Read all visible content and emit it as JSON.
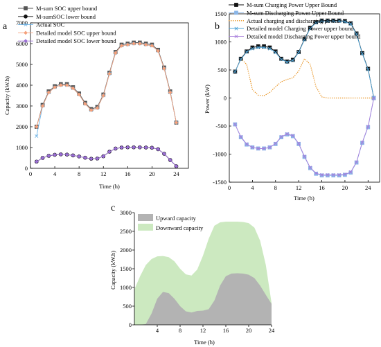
{
  "chart_data": [
    {
      "panel_label": "a",
      "type": "line",
      "xlabel": "Time (h)",
      "ylabel": "Capacity (kW.h)",
      "xlim": [
        0,
        26
      ],
      "ylim": [
        0,
        7000
      ],
      "xticks": [
        0,
        4,
        8,
        12,
        16,
        20,
        24
      ],
      "yticks": [
        0,
        1000,
        2000,
        3000,
        4000,
        5000,
        6000,
        7000
      ],
      "legend_position": "top-left",
      "x": [
        1,
        2,
        3,
        4,
        5,
        6,
        7,
        8,
        9,
        10,
        11,
        12,
        13,
        14,
        15,
        16,
        17,
        18,
        19,
        20,
        21,
        22,
        23,
        24
      ],
      "series": [
        {
          "name": "M-sum SOC upper bound",
          "color": "#555555",
          "marker": "square",
          "values": [
            2000,
            3050,
            3700,
            3950,
            4050,
            4050,
            3900,
            3600,
            3150,
            2850,
            2950,
            3550,
            4600,
            5600,
            5950,
            6000,
            6050,
            6050,
            6000,
            5950,
            5700,
            4850,
            3700,
            2200
          ]
        },
        {
          "name": "M-sumSOC lower bound",
          "color": "#111111",
          "marker": "circle",
          "values": [
            320,
            500,
            600,
            650,
            670,
            660,
            620,
            570,
            510,
            460,
            470,
            580,
            800,
            950,
            1000,
            1010,
            1010,
            1010,
            1000,
            990,
            920,
            700,
            400,
            100
          ]
        },
        {
          "name": "Actual SOC",
          "color": "#6fb4e6",
          "marker": "x",
          "values": [
            1550,
            3000,
            3650,
            3900,
            4000,
            4000,
            3850,
            3550,
            3100,
            2800,
            2900,
            3500,
            4550,
            5550,
            5900,
            5950,
            6000,
            6000,
            5950,
            5900,
            5650,
            4800,
            3650,
            2200
          ]
        },
        {
          "name": "Detailed model SOC upper bound",
          "color": "#f4a17c",
          "marker": "diamond",
          "values": [
            2000,
            3000,
            3650,
            3900,
            4000,
            4000,
            3850,
            3550,
            3100,
            2800,
            2900,
            3500,
            4550,
            5550,
            5900,
            5950,
            6000,
            6000,
            5950,
            5900,
            5650,
            4800,
            3650,
            2200
          ]
        },
        {
          "name": "Detailed model SOC lower bound",
          "color": "#9b6fd6",
          "marker": "diamond",
          "values": [
            320,
            500,
            600,
            650,
            670,
            660,
            620,
            570,
            510,
            460,
            470,
            580,
            800,
            950,
            1000,
            1010,
            1010,
            1010,
            1000,
            990,
            920,
            700,
            400,
            100
          ]
        }
      ]
    },
    {
      "panel_label": "b",
      "type": "line",
      "xlabel": "Time (h)",
      "ylabel": "Power (kW)",
      "xlim": [
        0,
        26
      ],
      "ylim": [
        -1500,
        1500
      ],
      "xticks": [
        0,
        4,
        8,
        12,
        16,
        20,
        24
      ],
      "yticks": [
        -1500,
        -1000,
        -500,
        0,
        500,
        1000,
        1500
      ],
      "legend_position": "top",
      "x": [
        1,
        2,
        3,
        4,
        5,
        6,
        7,
        8,
        9,
        10,
        11,
        12,
        13,
        14,
        15,
        16,
        17,
        18,
        19,
        20,
        21,
        22,
        23,
        24,
        25
      ],
      "series": [
        {
          "name": "M-sum Charging Power Upper Bound",
          "color": "#111111",
          "marker": "square",
          "values": [
            470,
            700,
            830,
            900,
            920,
            920,
            900,
            830,
            700,
            650,
            680,
            820,
            1050,
            1250,
            1350,
            1380,
            1380,
            1380,
            1380,
            1370,
            1330,
            1150,
            800,
            520,
            0
          ]
        },
        {
          "name": "M-sum Discharging Power Upper Bound",
          "color": "#8ab6e8",
          "marker": "square",
          "values": [
            -470,
            -700,
            -830,
            -880,
            -900,
            -900,
            -880,
            -820,
            -700,
            -650,
            -680,
            -820,
            -1050,
            -1250,
            -1350,
            -1380,
            -1380,
            -1380,
            -1380,
            -1370,
            -1330,
            -1150,
            -800,
            -520,
            0
          ]
        },
        {
          "name": "Actual charging and discharging power",
          "color": "#e8901a",
          "dash": true,
          "x": [
            2,
            3,
            4,
            5,
            6,
            7,
            8,
            9,
            10,
            11,
            12,
            13,
            14,
            15,
            16,
            17,
            18,
            19,
            20,
            21,
            22,
            23,
            24,
            25
          ],
          "values": [
            700,
            600,
            150,
            50,
            40,
            100,
            200,
            290,
            330,
            360,
            480,
            700,
            600,
            200,
            20,
            0,
            0,
            0,
            0,
            0,
            0,
            0,
            0,
            0
          ]
        },
        {
          "name": "Detailed model Charging Power upper bound",
          "color": "#4ea3d6",
          "marker": "x",
          "values": [
            470,
            690,
            820,
            880,
            900,
            900,
            880,
            810,
            690,
            640,
            670,
            810,
            1040,
            1240,
            1340,
            1370,
            1370,
            1370,
            1370,
            1360,
            1320,
            1140,
            790,
            510,
            0
          ]
        },
        {
          "name": "Detailed model Discharging Power upper bound",
          "color": "#a77ddb",
          "marker": "x",
          "values": [
            -470,
            -690,
            -820,
            -880,
            -900,
            -900,
            -880,
            -810,
            -690,
            -640,
            -670,
            -810,
            -1040,
            -1240,
            -1340,
            -1370,
            -1370,
            -1370,
            -1370,
            -1360,
            -1320,
            -1140,
            -790,
            -510,
            0
          ]
        }
      ]
    },
    {
      "panel_label": "c",
      "type": "area",
      "xlabel": "Time (h)",
      "ylabel": "Capacity (kW.h)",
      "xlim": [
        0,
        24
      ],
      "ylim": [
        0,
        3000
      ],
      "xticks": [
        4,
        8,
        12,
        16,
        20,
        24
      ],
      "yticks": [
        0,
        500,
        1000,
        1500,
        2000,
        2500,
        3000
      ],
      "legend_position": "top-left",
      "x": [
        0,
        1,
        2,
        3,
        4,
        5,
        6,
        7,
        8,
        9,
        10,
        11,
        12,
        13,
        14,
        15,
        16,
        17,
        18,
        19,
        20,
        21,
        22,
        23,
        24
      ],
      "series": [
        {
          "name": "Upward capacity",
          "color": "#b3b3b3",
          "values": [
            0,
            0,
            20,
            300,
            700,
            880,
            850,
            700,
            500,
            360,
            330,
            370,
            380,
            420,
            650,
            1050,
            1300,
            1370,
            1380,
            1370,
            1340,
            1250,
            1050,
            800,
            560
          ]
        },
        {
          "name": "Downward capacity",
          "color": "#cce9c0",
          "values": [
            950,
            1300,
            1600,
            1760,
            1830,
            1840,
            1810,
            1700,
            1500,
            1350,
            1320,
            1480,
            1850,
            2300,
            2650,
            2740,
            2760,
            2760,
            2760,
            2750,
            2720,
            2600,
            2250,
            1600,
            580
          ]
        }
      ]
    }
  ]
}
